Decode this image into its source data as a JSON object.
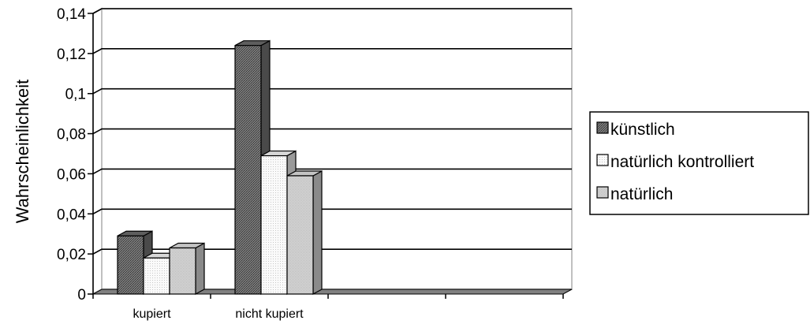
{
  "chart_data": {
    "type": "bar",
    "style": "3d-clustered-column",
    "title": "",
    "xlabel": "",
    "ylabel": "Wahrscheinlichkeit",
    "categories": [
      "kupiert",
      "nicht kupiert",
      "",
      ""
    ],
    "series": [
      {
        "name": "künstlich",
        "values": [
          0.029,
          0.124,
          null,
          null
        ],
        "color": "#6e6e6e"
      },
      {
        "name": "natürlich kontrolliert",
        "values": [
          0.018,
          0.069,
          null,
          null
        ],
        "color": "#f4f4f4"
      },
      {
        "name": "natürlich",
        "values": [
          0.023,
          0.059,
          null,
          null
        ],
        "color": "#d4d4d4"
      }
    ],
    "ylim": [
      0,
      0.14
    ],
    "yticks": [
      "0",
      "0,02",
      "0,04",
      "0,06",
      "0,08",
      "0,1",
      "0,12",
      "0,14"
    ],
    "grid": true,
    "legend": "right",
    "colors": {
      "wall": "#c0c0c0",
      "floor": "#808080",
      "grid": "#000000",
      "edge": "#000000"
    }
  }
}
